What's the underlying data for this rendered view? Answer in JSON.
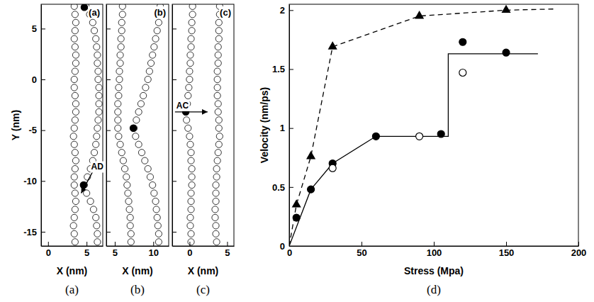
{
  "chart_data": [
    {
      "type": "scatter",
      "panel_label": "(a)",
      "caption": "(a)",
      "x_label": "X (nm)",
      "y_label": "Y (nm)",
      "xlim": [
        -0.9,
        7.1
      ],
      "xticks": [
        0,
        5
      ],
      "ylim": [
        -16.4,
        7.4
      ],
      "yticks": [
        -15,
        -10,
        -5,
        0,
        5
      ],
      "tick_labels": true,
      "series": [
        {
          "marker": "open_circle",
          "color": "#000000",
          "x": [
            3.4,
            3.5,
            3.6,
            3.5,
            3.4,
            3.5,
            3.6,
            3.6,
            3.5,
            3.4,
            3.4,
            3.5,
            3.6,
            3.6,
            3.5,
            3.4,
            3.3,
            3.4,
            3.5,
            3.6,
            3.5,
            3.4,
            3.4,
            3.5,
            3.6,
            3.5,
            3.4,
            3.3,
            3.4,
            3.5
          ],
          "values": [
            7.2,
            6.4,
            5.6,
            4.8,
            4.0,
            3.2,
            2.4,
            1.6,
            0.8,
            0,
            -0.8,
            -1.6,
            -2.4,
            -3.2,
            -4.0,
            -4.8,
            -5.6,
            -6.4,
            -7.2,
            -8.0,
            -8.8,
            -9.6,
            -10.4,
            -11.2,
            -12.0,
            -12.8,
            -13.6,
            -14.4,
            -15.2,
            -16.0
          ]
        },
        {
          "marker": "open_circle",
          "color": "#000000",
          "x": [
            4.9,
            5.4,
            5.8,
            6.0,
            6.2,
            6.3,
            6.4,
            6.4,
            6.5,
            6.5,
            6.6,
            6.6,
            6.6,
            6.6,
            6.5,
            6.4,
            6.3,
            6.2,
            6.0,
            5.8,
            5.5,
            5.1,
            4.7,
            5.0,
            5.5,
            5.9,
            6.2,
            6.3,
            6.4,
            6.4
          ],
          "values": [
            7.2,
            6.4,
            5.6,
            4.8,
            4.0,
            3.2,
            2.4,
            1.6,
            0.8,
            0,
            -0.8,
            -1.6,
            -2.4,
            -3.2,
            -4.0,
            -4.8,
            -5.6,
            -6.4,
            -7.2,
            -8.0,
            -8.8,
            -9.6,
            -10.4,
            -11.2,
            -12.0,
            -12.8,
            -13.6,
            -14.4,
            -15.2,
            -16.0
          ]
        },
        {
          "marker": "circle",
          "color": "#000000",
          "x": [
            4.7,
            4.6
          ],
          "values": [
            7.1,
            -10.4
          ]
        }
      ],
      "annotations": [
        {
          "text": "AD",
          "x": 4.3,
          "y": -11.2
        }
      ]
    },
    {
      "type": "scatter",
      "panel_label": "(b)",
      "caption": "(b)",
      "x_label": "X (nm)",
      "xlim": [
        3.9,
        12
      ],
      "xticks": [
        5,
        10
      ],
      "ylim": [
        -16.4,
        7.4
      ],
      "yticks": [
        -15,
        -10,
        -5,
        0,
        5
      ],
      "tick_labels": "x",
      "series": [
        {
          "marker": "open_circle",
          "color": "#000000",
          "x": [
            6.0,
            6.0,
            5.9,
            5.9,
            5.8,
            5.8,
            5.7,
            5.7,
            5.6,
            5.6,
            5.5,
            5.5,
            5.4,
            5.4,
            5.4,
            5.4,
            5.5,
            5.7,
            5.9,
            6.1,
            6.3,
            6.5,
            6.6,
            6.7,
            6.8,
            6.9,
            7.0,
            7.0,
            7.1,
            7.1
          ],
          "values": [
            7.2,
            6.4,
            5.6,
            4.8,
            4.0,
            3.2,
            2.4,
            1.6,
            0.8,
            0,
            -0.8,
            -1.6,
            -2.4,
            -3.2,
            -4.0,
            -4.8,
            -5.6,
            -6.4,
            -7.2,
            -8.0,
            -8.8,
            -9.6,
            -10.4,
            -11.2,
            -12.0,
            -12.8,
            -13.6,
            -14.4,
            -15.2,
            -16.0
          ]
        },
        {
          "marker": "open_circle",
          "color": "#000000",
          "x": [
            10.9,
            10.8,
            10.7,
            10.5,
            10.3,
            10.1,
            9.9,
            9.7,
            9.5,
            9.3,
            9.0,
            8.7,
            8.4,
            8.1,
            7.8,
            7.5,
            7.7,
            8.1,
            8.5,
            8.9,
            9.3,
            9.6,
            9.9,
            10.1,
            10.3,
            10.4,
            10.5,
            10.6,
            10.7,
            10.7
          ],
          "values": [
            7.2,
            6.4,
            5.6,
            4.8,
            4.0,
            3.2,
            2.4,
            1.6,
            0.8,
            0,
            -0.8,
            -1.6,
            -2.4,
            -3.2,
            -4.0,
            -4.8,
            -5.6,
            -6.4,
            -7.2,
            -8.0,
            -8.8,
            -9.6,
            -10.4,
            -11.2,
            -12.0,
            -12.8,
            -13.6,
            -14.4,
            -15.2,
            -16.0
          ]
        },
        {
          "marker": "circle",
          "color": "#000000",
          "x": [
            7.4
          ],
          "values": [
            -4.8
          ]
        }
      ]
    },
    {
      "type": "scatter",
      "panel_label": "(c)",
      "caption": "(c)",
      "x_label": "X (nm)",
      "xlim": [
        -2.3,
        5.9
      ],
      "xticks": [
        0,
        5
      ],
      "ylim": [
        -16.4,
        7.4
      ],
      "yticks": [
        -15,
        -10,
        -5,
        0,
        5
      ],
      "tick_labels": "x",
      "series": [
        {
          "marker": "open_circle",
          "color": "#000000",
          "x": [
            0.4,
            0.4,
            0.3,
            0.3,
            0.2,
            0.2,
            0.1,
            0.1,
            0.0,
            0.0,
            -0.1,
            -0.2,
            -0.3,
            -0.5,
            -0.4,
            -0.2,
            0.0,
            0.1,
            0.2,
            0.2,
            0.3,
            0.3,
            0.3,
            0.2,
            0.2,
            0.2,
            0.1,
            0.1,
            0.2,
            0.2
          ],
          "values": [
            7.2,
            6.4,
            5.6,
            4.8,
            4.0,
            3.2,
            2.4,
            1.6,
            0.8,
            0,
            -0.8,
            -1.6,
            -2.4,
            -3.2,
            -4.0,
            -4.8,
            -5.6,
            -6.4,
            -7.2,
            -8.0,
            -8.8,
            -9.6,
            -10.4,
            -11.2,
            -12.0,
            -12.8,
            -13.6,
            -14.4,
            -15.2,
            -16.0
          ]
        },
        {
          "marker": "open_circle",
          "color": "#000000",
          "x": [
            4.0,
            4.0,
            3.9,
            3.9,
            3.9,
            3.8,
            3.8,
            3.8,
            3.7,
            3.7,
            3.7,
            3.7,
            3.8,
            3.8,
            3.9,
            3.9,
            4.0,
            3.9,
            3.8,
            3.7,
            3.6,
            3.6,
            3.5,
            3.5,
            3.5,
            3.4,
            3.4,
            3.5,
            3.5,
            3.6
          ],
          "values": [
            7.2,
            6.4,
            5.6,
            4.8,
            4.0,
            3.2,
            2.4,
            1.6,
            0.8,
            0,
            -0.8,
            -1.6,
            -2.4,
            -3.2,
            -4.0,
            -4.8,
            -5.6,
            -6.4,
            -7.2,
            -8.0,
            -8.8,
            -9.6,
            -10.4,
            -11.2,
            -12.0,
            -12.8,
            -13.6,
            -14.4,
            -15.2,
            -16.0
          ]
        },
        {
          "marker": "circle",
          "color": "#000000",
          "x": [
            -0.5
          ],
          "values": [
            -3.2
          ]
        }
      ],
      "annotations": [
        {
          "text": "AC",
          "x": 2.4,
          "y": -3.2
        }
      ]
    },
    {
      "type": "line",
      "caption": "(d)",
      "x_label": "Stress (Mpa)",
      "y_label": "Velocity (nm/ps)",
      "xlim": [
        0,
        200
      ],
      "xticks": [
        0,
        50,
        100,
        150,
        200
      ],
      "ylim": [
        0,
        2.05
      ],
      "yticks": [
        0,
        0.5,
        1,
        1.5,
        2
      ],
      "tick_labels": true,
      "series": [
        {
          "marker": "none",
          "line_style": "dashed",
          "color": "#000000",
          "x": [
            0,
            5,
            15,
            30,
            90,
            150,
            185
          ],
          "values": [
            0,
            0.35,
            0.76,
            1.69,
            1.95,
            2.0,
            2.01
          ]
        },
        {
          "marker": "triangle",
          "line_style": "none",
          "color": "#000000",
          "x": [
            5,
            15,
            30,
            90,
            150
          ],
          "values": [
            0.35,
            0.76,
            1.69,
            1.95,
            2.0
          ]
        },
        {
          "marker": "none",
          "line_style": "solid",
          "color": "#000000",
          "x": [
            0,
            15,
            30,
            60,
            110,
            110,
            172
          ],
          "values": [
            0,
            0.48,
            0.7,
            0.93,
            0.93,
            1.63,
            1.63
          ]
        },
        {
          "marker": "circle",
          "line_style": "none",
          "color": "#000000",
          "x": [
            5,
            15,
            30,
            60,
            105,
            120,
            150
          ],
          "values": [
            0.24,
            0.48,
            0.7,
            0.93,
            0.95,
            1.73,
            1.64
          ]
        },
        {
          "marker": "open_circle",
          "line_style": "none",
          "color": "#000000",
          "x": [
            30,
            90,
            120
          ],
          "values": [
            0.66,
            0.93,
            1.47
          ]
        }
      ]
    }
  ]
}
